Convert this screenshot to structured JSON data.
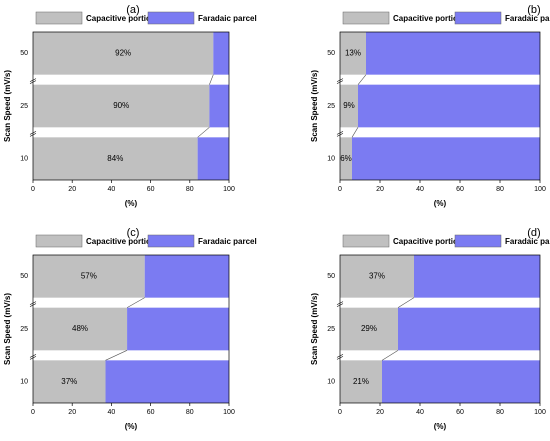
{
  "chart_data": [
    {
      "type": "bar",
      "title": "(a)",
      "categories": [
        "10",
        "25",
        "50"
      ],
      "series": [
        {
          "name": "Capacitive portion",
          "color": "#c0c0c0",
          "values": [
            84,
            90,
            92
          ],
          "value_labels": [
            "84%",
            "90%",
            "92%"
          ]
        },
        {
          "name": "Faradaic parcel",
          "color": "#7b7bf2",
          "values": [
            16,
            10,
            8
          ]
        }
      ],
      "xlim": [
        0,
        100
      ],
      "xticks": [
        0,
        20,
        40,
        60,
        80,
        100
      ],
      "xlabel": "(%)",
      "ylabel": "Scan Speed (mV/s)",
      "stacked": true,
      "orientation": "horizontal"
    },
    {
      "type": "bar",
      "title": "(b)",
      "categories": [
        "10",
        "25",
        "50"
      ],
      "series": [
        {
          "name": "Capacitive portion",
          "color": "#c0c0c0",
          "values": [
            6,
            9,
            13
          ],
          "value_labels": [
            "6%",
            "9%",
            "13%"
          ]
        },
        {
          "name": "Faradaic parcel",
          "color": "#7b7bf2",
          "values": [
            94,
            91,
            87
          ]
        }
      ],
      "xlim": [
        0,
        100
      ],
      "xticks": [
        0,
        20,
        40,
        60,
        80,
        100
      ],
      "xlabel": "(%)",
      "ylabel": "Scan Speed (mV/s)",
      "stacked": true,
      "orientation": "horizontal"
    },
    {
      "type": "bar",
      "title": "(c)",
      "categories": [
        "10",
        "25",
        "50"
      ],
      "series": [
        {
          "name": "Capacitive portion",
          "color": "#c0c0c0",
          "values": [
            37,
            48,
            57
          ],
          "value_labels": [
            "37%",
            "48%",
            "57%"
          ]
        },
        {
          "name": "Faradaic parcel",
          "color": "#7b7bf2",
          "values": [
            63,
            52,
            43
          ]
        }
      ],
      "xlim": [
        0,
        100
      ],
      "xticks": [
        0,
        20,
        40,
        60,
        80,
        100
      ],
      "xlabel": "(%)",
      "ylabel": "Scan Speed (mV/s)",
      "stacked": true,
      "orientation": "horizontal"
    },
    {
      "type": "bar",
      "title": "(d)",
      "categories": [
        "10",
        "25",
        "50"
      ],
      "series": [
        {
          "name": "Capacitive portion",
          "color": "#c0c0c0",
          "values": [
            21,
            29,
            37
          ],
          "value_labels": [
            "21%",
            "29%",
            "37%"
          ]
        },
        {
          "name": "Faradaic parcel",
          "color": "#7b7bf2",
          "values": [
            79,
            71,
            63
          ]
        }
      ],
      "xlim": [
        0,
        100
      ],
      "xticks": [
        0,
        20,
        40,
        60,
        80,
        100
      ],
      "xlabel": "(%)",
      "ylabel": "Scan Speed (mV/s)",
      "stacked": true,
      "orientation": "horizontal"
    }
  ]
}
